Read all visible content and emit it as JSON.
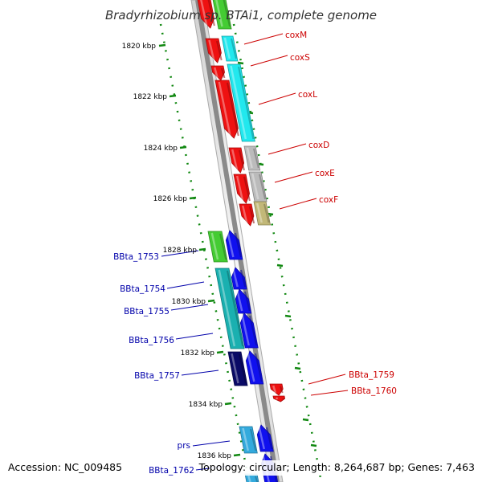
{
  "title": "Bradyrhizobium sp. BTAi1, complete genome",
  "accession": "Accession: NC_009485",
  "summary": "Topology: circular; Length: 8,264,687 bp; Genes: 7,463",
  "ticks": [
    "1820 kbp",
    "1822 kbp",
    "1824 kbp",
    "1826 kbp",
    "1828 kbp",
    "1830 kbp",
    "1832 kbp",
    "1834 kbp",
    "1836 kbp"
  ],
  "genes": {
    "coxM": "coxM",
    "coxS": "coxS",
    "coxL": "coxL",
    "coxD": "coxD",
    "coxE": "coxE",
    "coxF": "coxF",
    "bbta1753": "BBta_1753",
    "bbta1754": "BBta_1754",
    "bbta1755": "BBta_1755",
    "bbta1756": "BBta_1756",
    "bbta1757": "BBta_1757",
    "prs": "prs",
    "bbta1762": "BBta_1762",
    "bbta1759": "BBta_1759",
    "bbta1760": "BBta_1760"
  },
  "colors": {
    "red": "#ee1111",
    "cyan": "#22e8ee",
    "grey": "#bbbbbb",
    "olive": "#c2b878",
    "green": "#44cc33",
    "blue": "#1010ee",
    "teal": "#1ab0b0",
    "navy": "#0a0a66",
    "lightblue": "#33aadd",
    "red_label": "#cc0000",
    "blue_label": "#0000aa",
    "tick_green": "#118811",
    "backbone": "#999999"
  }
}
